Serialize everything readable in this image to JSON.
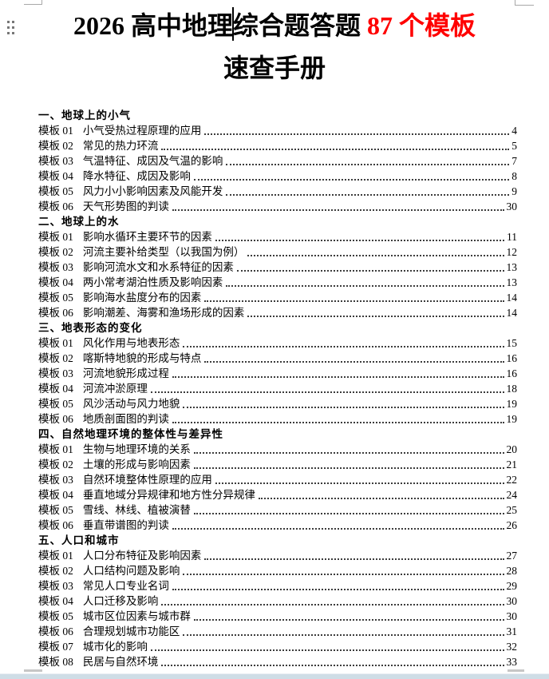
{
  "title": {
    "part1_black": "2026 高中地理",
    "part2_black": "综合题答题",
    "red_part": " 87 个模板",
    "line2": "速查手册",
    "accent_red": "#ff0000"
  },
  "icons": {
    "drag_handle": "drag-handle-icon"
  },
  "toc": {
    "item_label_prefix": "模板",
    "sections": [
      {
        "header": "一、地球上的小气",
        "items": [
          {
            "no": "01",
            "title": "小气受热过程原理的应用",
            "page": "4"
          },
          {
            "no": "02",
            "title": "常见的热力环流",
            "page": "5"
          },
          {
            "no": "03",
            "title": "气温特征、成因及气温的影响",
            "page": "7"
          },
          {
            "no": "04",
            "title": "降水特征、成因及影响",
            "page": "8"
          },
          {
            "no": "05",
            "title": "风力小小影响因素及风能开发",
            "page": "9"
          },
          {
            "no": "06",
            "title": "天气形势图的判读",
            "page": "30"
          }
        ]
      },
      {
        "header": "二、地球上的水",
        "items": [
          {
            "no": "01",
            "title": "影响水循环主要环节的因素",
            "page": "11"
          },
          {
            "no": "02",
            "title": "河流主要补给类型（以我国为例）",
            "page": "12"
          },
          {
            "no": "03",
            "title": "影响河流水文和水系特征的因素",
            "page": "13"
          },
          {
            "no": "04",
            "title": "两小常考湖泊性质及影响因素",
            "page": "13"
          },
          {
            "no": "05",
            "title": "影响海水盐度分布的因素",
            "page": "14"
          },
          {
            "no": "06",
            "title": "影响潮差、海雾和渔场形成的因素",
            "page": "14"
          }
        ]
      },
      {
        "header": "三、地表形态的变化",
        "items": [
          {
            "no": "01",
            "title": "风化作用与地表形态",
            "page": "15"
          },
          {
            "no": "02",
            "title": "喀斯特地貌的形成与特点",
            "page": "16"
          },
          {
            "no": "03",
            "title": "河流地貌形成过程",
            "page": "16"
          },
          {
            "no": "04",
            "title": "河流冲淤原理",
            "page": "18"
          },
          {
            "no": "05",
            "title": "风沙活动与风力地貌",
            "page": "19"
          },
          {
            "no": "06",
            "title": "地质剖面图的判读",
            "page": "19"
          }
        ]
      },
      {
        "header": "四、自然地理环境的整体性与差异性",
        "items": [
          {
            "no": "01",
            "title": "生物与地理环境的关系",
            "page": "20"
          },
          {
            "no": "02",
            "title": "土壤的形成与影响因素",
            "page": "21"
          },
          {
            "no": "03",
            "title": "自然环境整体性原理的应用",
            "page": "22"
          },
          {
            "no": "04",
            "title": "垂直地域分异规律和地方性分异规律",
            "page": "24"
          },
          {
            "no": "05",
            "title": "雪线、林线、植被演替",
            "page": "25"
          },
          {
            "no": "06",
            "title": "垂直带谱图的判读",
            "page": "26"
          }
        ]
      },
      {
        "header": "五、人口和城市",
        "items": [
          {
            "no": "01",
            "title": "人口分布特征及影响因素",
            "page": "27"
          },
          {
            "no": "02",
            "title": "人口结构问题及影响",
            "page": "28"
          },
          {
            "no": "03",
            "title": "常见人口专业名词",
            "page": "29"
          },
          {
            "no": "04",
            "title": "人口迁移及影响",
            "page": "30"
          },
          {
            "no": "05",
            "title": "城市区位因素与城市群",
            "page": "30"
          },
          {
            "no": "06",
            "title": "合理规划城市功能区",
            "page": "31"
          },
          {
            "no": "07",
            "title": "城市化的影响",
            "page": "32"
          },
          {
            "no": "08",
            "title": "民居与自然环境",
            "page": "33"
          }
        ]
      }
    ]
  }
}
